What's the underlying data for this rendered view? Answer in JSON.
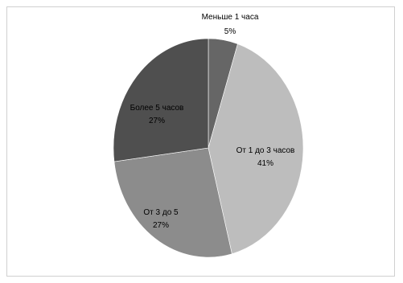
{
  "chart_data": {
    "type": "pie",
    "slices": [
      {
        "label": "Меньше 1 часа",
        "value": 5,
        "value_label": "5%",
        "color": "#666666"
      },
      {
        "label": "От 1 до 3 часов",
        "value": 41,
        "value_label": "41%",
        "color": "#bdbdbd"
      },
      {
        "label": "От 3 до 5",
        "value": 27,
        "value_label": "27%",
        "color": "#8c8c8c"
      },
      {
        "label": "Более 5 часов",
        "value": 27,
        "value_label": "27%",
        "color": "#4f4f4f"
      }
    ],
    "legend": "none",
    "data_labels": "category and percent"
  }
}
